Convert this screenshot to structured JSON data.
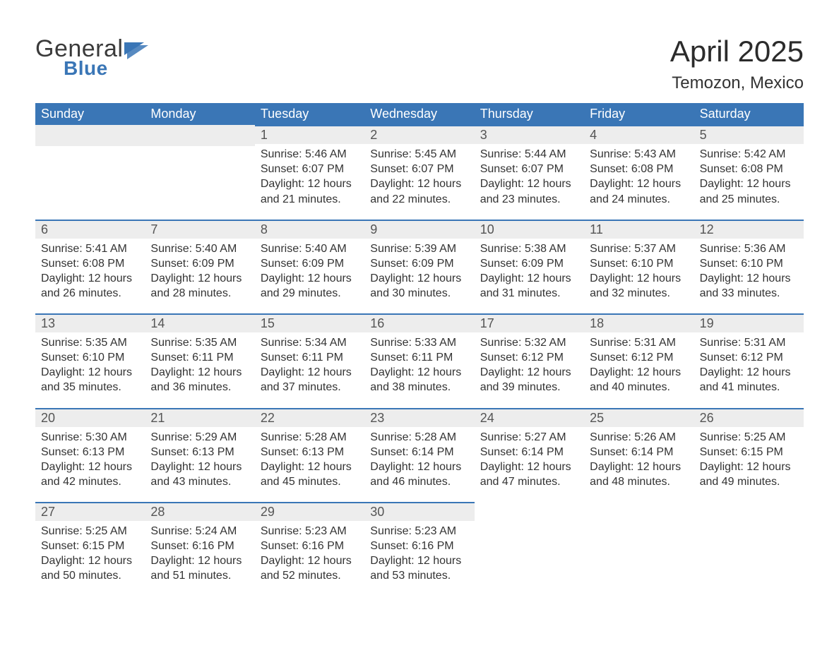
{
  "brand": {
    "main": "General",
    "sub": "Blue"
  },
  "title": "April 2025",
  "location": "Temozon, Mexico",
  "colors": {
    "header_bg": "#3a76b6",
    "header_text": "#ffffff",
    "daynum_bg": "#ededed",
    "daynum_border": "#3a76b6",
    "body_text": "#333333",
    "logo_accent": "#3a76b6",
    "page_bg": "#ffffff"
  },
  "day_headers": [
    "Sunday",
    "Monday",
    "Tuesday",
    "Wednesday",
    "Thursday",
    "Friday",
    "Saturday"
  ],
  "weeks": [
    [
      {
        "empty": true
      },
      {
        "empty": true
      },
      {
        "day": "1",
        "sunrise": "Sunrise: 5:46 AM",
        "sunset": "Sunset: 6:07 PM",
        "dl1": "Daylight: 12 hours",
        "dl2": "and 21 minutes."
      },
      {
        "day": "2",
        "sunrise": "Sunrise: 5:45 AM",
        "sunset": "Sunset: 6:07 PM",
        "dl1": "Daylight: 12 hours",
        "dl2": "and 22 minutes."
      },
      {
        "day": "3",
        "sunrise": "Sunrise: 5:44 AM",
        "sunset": "Sunset: 6:07 PM",
        "dl1": "Daylight: 12 hours",
        "dl2": "and 23 minutes."
      },
      {
        "day": "4",
        "sunrise": "Sunrise: 5:43 AM",
        "sunset": "Sunset: 6:08 PM",
        "dl1": "Daylight: 12 hours",
        "dl2": "and 24 minutes."
      },
      {
        "day": "5",
        "sunrise": "Sunrise: 5:42 AM",
        "sunset": "Sunset: 6:08 PM",
        "dl1": "Daylight: 12 hours",
        "dl2": "and 25 minutes."
      }
    ],
    [
      {
        "day": "6",
        "sunrise": "Sunrise: 5:41 AM",
        "sunset": "Sunset: 6:08 PM",
        "dl1": "Daylight: 12 hours",
        "dl2": "and 26 minutes."
      },
      {
        "day": "7",
        "sunrise": "Sunrise: 5:40 AM",
        "sunset": "Sunset: 6:09 PM",
        "dl1": "Daylight: 12 hours",
        "dl2": "and 28 minutes."
      },
      {
        "day": "8",
        "sunrise": "Sunrise: 5:40 AM",
        "sunset": "Sunset: 6:09 PM",
        "dl1": "Daylight: 12 hours",
        "dl2": "and 29 minutes."
      },
      {
        "day": "9",
        "sunrise": "Sunrise: 5:39 AM",
        "sunset": "Sunset: 6:09 PM",
        "dl1": "Daylight: 12 hours",
        "dl2": "and 30 minutes."
      },
      {
        "day": "10",
        "sunrise": "Sunrise: 5:38 AM",
        "sunset": "Sunset: 6:09 PM",
        "dl1": "Daylight: 12 hours",
        "dl2": "and 31 minutes."
      },
      {
        "day": "11",
        "sunrise": "Sunrise: 5:37 AM",
        "sunset": "Sunset: 6:10 PM",
        "dl1": "Daylight: 12 hours",
        "dl2": "and 32 minutes."
      },
      {
        "day": "12",
        "sunrise": "Sunrise: 5:36 AM",
        "sunset": "Sunset: 6:10 PM",
        "dl1": "Daylight: 12 hours",
        "dl2": "and 33 minutes."
      }
    ],
    [
      {
        "day": "13",
        "sunrise": "Sunrise: 5:35 AM",
        "sunset": "Sunset: 6:10 PM",
        "dl1": "Daylight: 12 hours",
        "dl2": "and 35 minutes."
      },
      {
        "day": "14",
        "sunrise": "Sunrise: 5:35 AM",
        "sunset": "Sunset: 6:11 PM",
        "dl1": "Daylight: 12 hours",
        "dl2": "and 36 minutes."
      },
      {
        "day": "15",
        "sunrise": "Sunrise: 5:34 AM",
        "sunset": "Sunset: 6:11 PM",
        "dl1": "Daylight: 12 hours",
        "dl2": "and 37 minutes."
      },
      {
        "day": "16",
        "sunrise": "Sunrise: 5:33 AM",
        "sunset": "Sunset: 6:11 PM",
        "dl1": "Daylight: 12 hours",
        "dl2": "and 38 minutes."
      },
      {
        "day": "17",
        "sunrise": "Sunrise: 5:32 AM",
        "sunset": "Sunset: 6:12 PM",
        "dl1": "Daylight: 12 hours",
        "dl2": "and 39 minutes."
      },
      {
        "day": "18",
        "sunrise": "Sunrise: 5:31 AM",
        "sunset": "Sunset: 6:12 PM",
        "dl1": "Daylight: 12 hours",
        "dl2": "and 40 minutes."
      },
      {
        "day": "19",
        "sunrise": "Sunrise: 5:31 AM",
        "sunset": "Sunset: 6:12 PM",
        "dl1": "Daylight: 12 hours",
        "dl2": "and 41 minutes."
      }
    ],
    [
      {
        "day": "20",
        "sunrise": "Sunrise: 5:30 AM",
        "sunset": "Sunset: 6:13 PM",
        "dl1": "Daylight: 12 hours",
        "dl2": "and 42 minutes."
      },
      {
        "day": "21",
        "sunrise": "Sunrise: 5:29 AM",
        "sunset": "Sunset: 6:13 PM",
        "dl1": "Daylight: 12 hours",
        "dl2": "and 43 minutes."
      },
      {
        "day": "22",
        "sunrise": "Sunrise: 5:28 AM",
        "sunset": "Sunset: 6:13 PM",
        "dl1": "Daylight: 12 hours",
        "dl2": "and 45 minutes."
      },
      {
        "day": "23",
        "sunrise": "Sunrise: 5:28 AM",
        "sunset": "Sunset: 6:14 PM",
        "dl1": "Daylight: 12 hours",
        "dl2": "and 46 minutes."
      },
      {
        "day": "24",
        "sunrise": "Sunrise: 5:27 AM",
        "sunset": "Sunset: 6:14 PM",
        "dl1": "Daylight: 12 hours",
        "dl2": "and 47 minutes."
      },
      {
        "day": "25",
        "sunrise": "Sunrise: 5:26 AM",
        "sunset": "Sunset: 6:14 PM",
        "dl1": "Daylight: 12 hours",
        "dl2": "and 48 minutes."
      },
      {
        "day": "26",
        "sunrise": "Sunrise: 5:25 AM",
        "sunset": "Sunset: 6:15 PM",
        "dl1": "Daylight: 12 hours",
        "dl2": "and 49 minutes."
      }
    ],
    [
      {
        "day": "27",
        "sunrise": "Sunrise: 5:25 AM",
        "sunset": "Sunset: 6:15 PM",
        "dl1": "Daylight: 12 hours",
        "dl2": "and 50 minutes."
      },
      {
        "day": "28",
        "sunrise": "Sunrise: 5:24 AM",
        "sunset": "Sunset: 6:16 PM",
        "dl1": "Daylight: 12 hours",
        "dl2": "and 51 minutes."
      },
      {
        "day": "29",
        "sunrise": "Sunrise: 5:23 AM",
        "sunset": "Sunset: 6:16 PM",
        "dl1": "Daylight: 12 hours",
        "dl2": "and 52 minutes."
      },
      {
        "day": "30",
        "sunrise": "Sunrise: 5:23 AM",
        "sunset": "Sunset: 6:16 PM",
        "dl1": "Daylight: 12 hours",
        "dl2": "and 53 minutes."
      },
      {
        "empty": true
      },
      {
        "empty": true
      },
      {
        "empty": true
      }
    ]
  ]
}
